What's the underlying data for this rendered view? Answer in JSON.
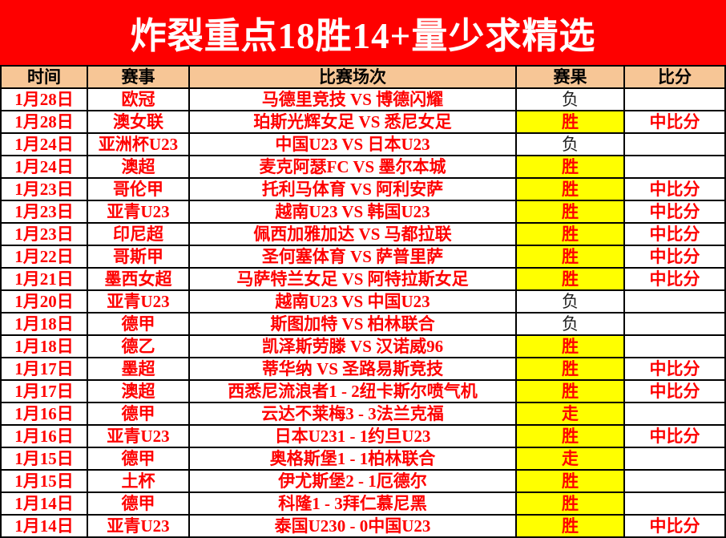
{
  "banner": {
    "title": "炸裂重点18胜14+量少求精选"
  },
  "colors": {
    "banner_bg": "#FE0000",
    "banner_text": "#FFFFFF",
    "header_bg": "#F7C696",
    "win_highlight_bg": "#FFFF00",
    "text_red": "#FE0000",
    "text_black": "#1C1C1C",
    "grid_border": "#000000"
  },
  "table": {
    "headers": [
      "时间",
      "赛事",
      "比赛场次",
      "赛果",
      "比分"
    ],
    "rows": [
      {
        "date": "1月28日",
        "league": "欧冠",
        "match": "马德里竞技 VS 博德闪耀",
        "result": "负",
        "result_type": "loss",
        "score": ""
      },
      {
        "date": "1月28日",
        "league": "澳女联",
        "match": "珀斯光辉女足 VS 悉尼女足",
        "result": "胜",
        "result_type": "win",
        "score": "中比分"
      },
      {
        "date": "1月24日",
        "league": "亚洲杯U23",
        "match": "中国U23 VS 日本U23",
        "result": "负",
        "result_type": "loss",
        "score": ""
      },
      {
        "date": "1月24日",
        "league": "澳超",
        "match": "麦克阿瑟FC VS 墨尔本城",
        "result": "胜",
        "result_type": "win",
        "score": ""
      },
      {
        "date": "1月23日",
        "league": "哥伦甲",
        "match": "托利马体育 VS 阿利安萨",
        "result": "胜",
        "result_type": "win",
        "score": "中比分"
      },
      {
        "date": "1月23日",
        "league": "亚青U23",
        "match": "越南U23 VS 韩国U23",
        "result": "胜",
        "result_type": "win",
        "score": "中比分"
      },
      {
        "date": "1月23日",
        "league": "印尼超",
        "match": "佩西加雅加达 VS 马都拉联",
        "result": "胜",
        "result_type": "win",
        "score": "中比分"
      },
      {
        "date": "1月22日",
        "league": "哥斯甲",
        "match": "圣何塞体育 VS 萨普里萨",
        "result": "胜",
        "result_type": "win",
        "score": "中比分"
      },
      {
        "date": "1月21日",
        "league": "墨西女超",
        "match": "马萨特兰女足 VS 阿特拉斯女足",
        "result": "胜",
        "result_type": "win",
        "score": "中比分"
      },
      {
        "date": "1月20日",
        "league": "亚青U23",
        "match": "越南U23 VS 中国U23",
        "result": "负",
        "result_type": "loss",
        "score": ""
      },
      {
        "date": "1月18日",
        "league": "德甲",
        "match": "斯图加特 VS 柏林联合",
        "result": "负",
        "result_type": "loss",
        "score": ""
      },
      {
        "date": "1月18日",
        "league": "德乙",
        "match": "凯泽斯劳滕 VS 汉诺威96",
        "result": "胜",
        "result_type": "win",
        "score": ""
      },
      {
        "date": "1月17日",
        "league": "墨超",
        "match": "蒂华纳 VS 圣路易斯竞技",
        "result": "胜",
        "result_type": "win",
        "score": "中比分"
      },
      {
        "date": "1月17日",
        "league": "澳超",
        "match": "西悉尼流浪者1 - 2纽卡斯尔喷气机",
        "result": "胜",
        "result_type": "win",
        "score": "中比分"
      },
      {
        "date": "1月16日",
        "league": "德甲",
        "match": "云达不莱梅3 - 3法兰克福",
        "result": "走",
        "result_type": "push",
        "score": ""
      },
      {
        "date": "1月16日",
        "league": "亚青U23",
        "match": "日本U231 - 1约旦U23",
        "result": "胜",
        "result_type": "win",
        "score": "中比分"
      },
      {
        "date": "1月15日",
        "league": "德甲",
        "match": "奥格斯堡1 - 1柏林联合",
        "result": "走",
        "result_type": "push",
        "score": ""
      },
      {
        "date": "1月15日",
        "league": "土杯",
        "match": "伊尤斯堡2 - 1厄德尔",
        "result": "胜",
        "result_type": "win",
        "score": ""
      },
      {
        "date": "1月14日",
        "league": "德甲",
        "match": "科隆1 - 3拜仁慕尼黑",
        "result": "胜",
        "result_type": "win",
        "score": ""
      },
      {
        "date": "1月14日",
        "league": "亚青U23",
        "match": "泰国U230 - 0中国U23",
        "result": "胜",
        "result_type": "win",
        "score": "中比分"
      }
    ]
  }
}
